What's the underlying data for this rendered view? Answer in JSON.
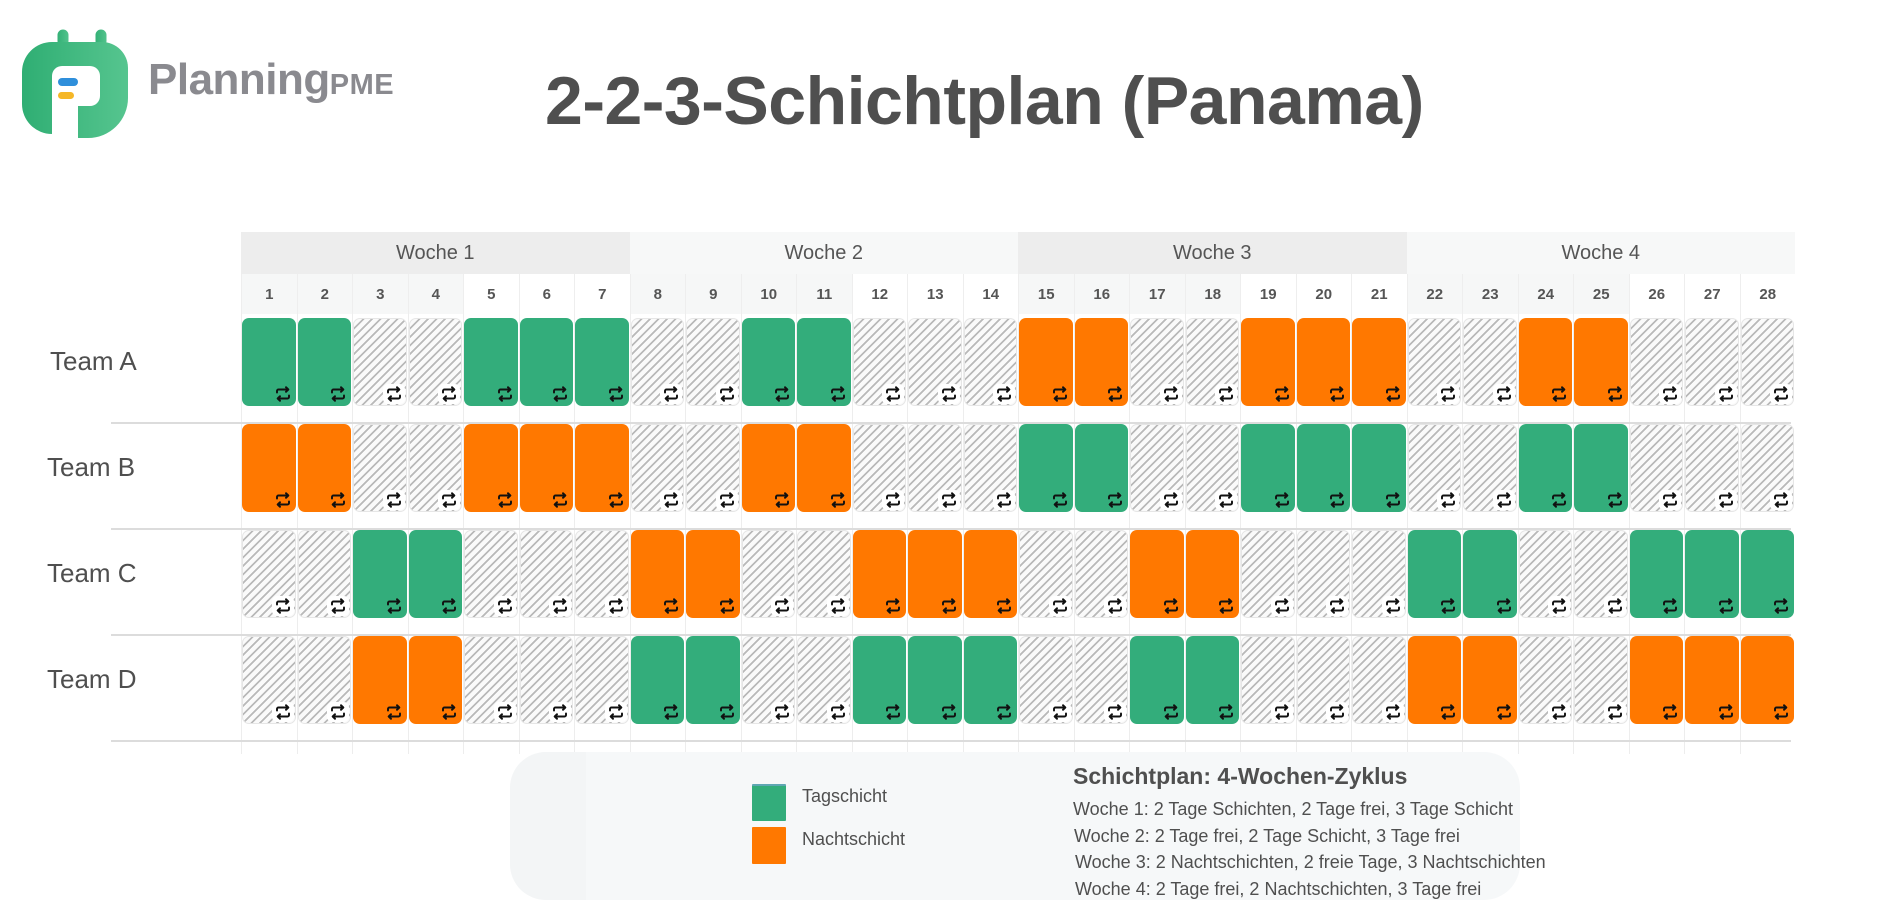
{
  "logo": {
    "name": "Planning",
    "suffix": "PME",
    "colors": {
      "green": "#3cb982",
      "blue": "#2f8fdb",
      "yellow": "#f5b727",
      "text": "#8a8a8f"
    }
  },
  "title": "2-2-3-Schichtplan (Panama)",
  "colors": {
    "day_shift": "#33ad7b",
    "night_shift": "#ff7800",
    "off": "hatched-grey"
  },
  "weeks": [
    {
      "label": "Woche 1",
      "days": [
        "1",
        "2",
        "3",
        "4",
        "5",
        "6",
        "7"
      ]
    },
    {
      "label": "Woche 2",
      "days": [
        "8",
        "9",
        "10",
        "11",
        "12",
        "13",
        "14"
      ]
    },
    {
      "label": "Woche 3",
      "days": [
        "15",
        "16",
        "17",
        "18",
        "19",
        "20",
        "21"
      ]
    },
    {
      "label": "Woche 4",
      "days": [
        "22",
        "23",
        "24",
        "25",
        "26",
        "27",
        "28"
      ]
    }
  ],
  "teams": [
    {
      "name": "Team A",
      "shifts": [
        "day",
        "day",
        "off",
        "off",
        "day",
        "day",
        "day",
        "off",
        "off",
        "day",
        "day",
        "off",
        "off",
        "off",
        "night",
        "night",
        "off",
        "off",
        "night",
        "night",
        "night",
        "off",
        "off",
        "night",
        "night",
        "off",
        "off",
        "off"
      ]
    },
    {
      "name": "Team B",
      "shifts": [
        "night",
        "night",
        "off",
        "off",
        "night",
        "night",
        "night",
        "off",
        "off",
        "night",
        "night",
        "off",
        "off",
        "off",
        "day",
        "day",
        "off",
        "off",
        "day",
        "day",
        "day",
        "off",
        "off",
        "day",
        "day",
        "off",
        "off",
        "off"
      ]
    },
    {
      "name": "Team C",
      "shifts": [
        "off",
        "off",
        "day",
        "day",
        "off",
        "off",
        "off",
        "night",
        "night",
        "off",
        "off",
        "night",
        "night",
        "night",
        "off",
        "off",
        "night",
        "night",
        "off",
        "off",
        "off",
        "day",
        "day",
        "off",
        "off",
        "day",
        "day",
        "day"
      ]
    },
    {
      "name": "Team D",
      "shifts": [
        "off",
        "off",
        "night",
        "night",
        "off",
        "off",
        "off",
        "day",
        "day",
        "off",
        "off",
        "day",
        "day",
        "day",
        "off",
        "off",
        "day",
        "day",
        "off",
        "off",
        "off",
        "night",
        "night",
        "off",
        "off",
        "night",
        "night",
        "night"
      ]
    }
  ],
  "cell_icon": "repeat-icon",
  "legend": {
    "items": [
      {
        "label": "Tagschicht",
        "color": "#33ad7b"
      },
      {
        "label": "Nachtschicht",
        "color": "#ff7800"
      }
    ],
    "cycle_title": "Schichtplan: 4-Wochen-Zyklus",
    "cycle_lines": [
      "Woche 1: 2 Tage Schichten, 2 Tage frei, 3 Tage Schicht",
      "Woche 2: 2 Tage frei, 2 Tage Schicht, 3 Tage frei",
      "Woche 3: 2 Nachtschichten, 2 freie Tage, 3 Nachtschichten",
      "Woche 4: 2 Tage frei, 2 Nachtschichten, 3 Tage frei"
    ]
  }
}
